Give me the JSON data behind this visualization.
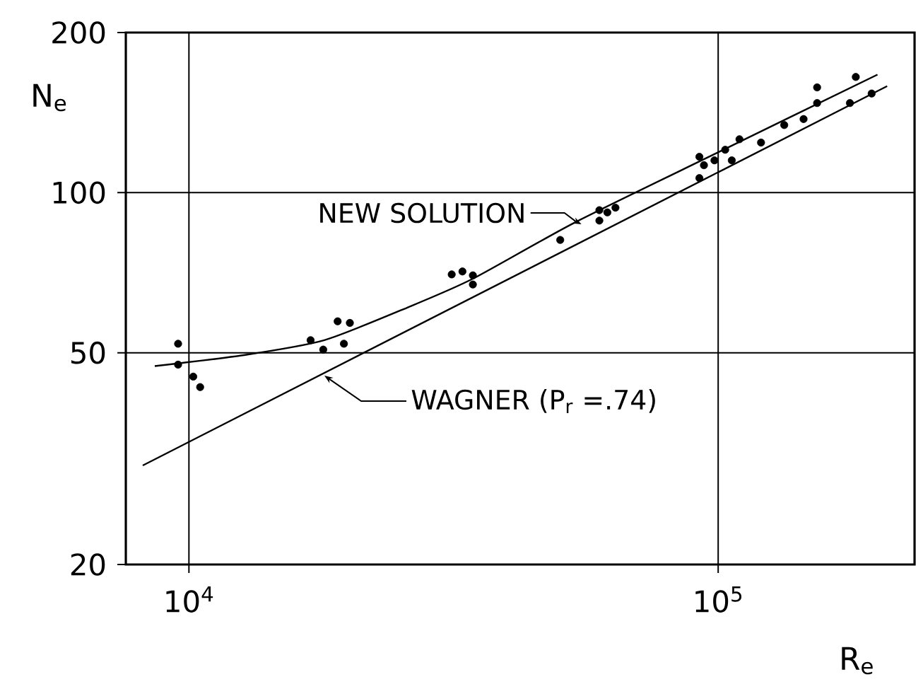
{
  "chart_data": {
    "type": "scatter",
    "xlabel": "R$_{e}$",
    "ylabel": "N$_{e}$",
    "log": "xy",
    "grid": true,
    "xlim": [
      7600,
      235000
    ],
    "ylim": [
      20,
      200
    ],
    "xticks": [
      {
        "value": 10000,
        "label": "10$^{4}$"
      },
      {
        "value": 100000,
        "label": "10$^{5}$"
      }
    ],
    "yticks": [
      20,
      50,
      100,
      200
    ],
    "series": [
      {
        "marker": "circle",
        "color": "#000000",
        "x": [
          9540,
          9540,
          10190,
          10500,
          16980,
          17940,
          19100,
          20140,
          19630,
          31370,
          32870,
          34400,
          34400,
          50300,
          59640,
          59640,
          61750,
          63970,
          92150,
          94000,
          92150,
          98400,
          103100,
          106100,
          109700,
          120500,
          133300,
          145000,
          153800,
          153800,
          177400,
          182000,
          195000
        ],
        "values": [
          52.0,
          47.5,
          45.1,
          43.1,
          52.8,
          50.7,
          57.3,
          56.9,
          52.0,
          70.2,
          71.1,
          69.9,
          67.2,
          81.5,
          92.7,
          88.6,
          91.8,
          93.7,
          116.8,
          112.6,
          106.5,
          115,
          120.4,
          115,
          126,
          124.2,
          134,
          137.5,
          157.7,
          147.4,
          147.4,
          165,
          153.6
        ]
      },
      {
        "type": "line",
        "marker": "none",
        "line_style": "solid",
        "color": "#000000",
        "x": [
          8620,
          12710,
          18030,
          26060,
          34400,
          53500,
          99000,
          200000
        ],
        "values": [
          47.2,
          49.5,
          52.8,
          61.0,
          68.9,
          87.8,
          118.5,
          166.7
        ]
      },
      {
        "type": "line",
        "marker": "none",
        "line_style": "solid",
        "color": "#000000",
        "x": [
          8180,
          208600
        ],
        "values": [
          30.7,
          158.6
        ]
      }
    ],
    "annotations": [
      {
        "text": "NEW SOLUTION",
        "x": 55170,
        "y": 87.2
      },
      {
        "text": "WAGNER (P$_{r}$ =.74)",
        "x": 18030,
        "y": 45.3
      }
    ]
  }
}
